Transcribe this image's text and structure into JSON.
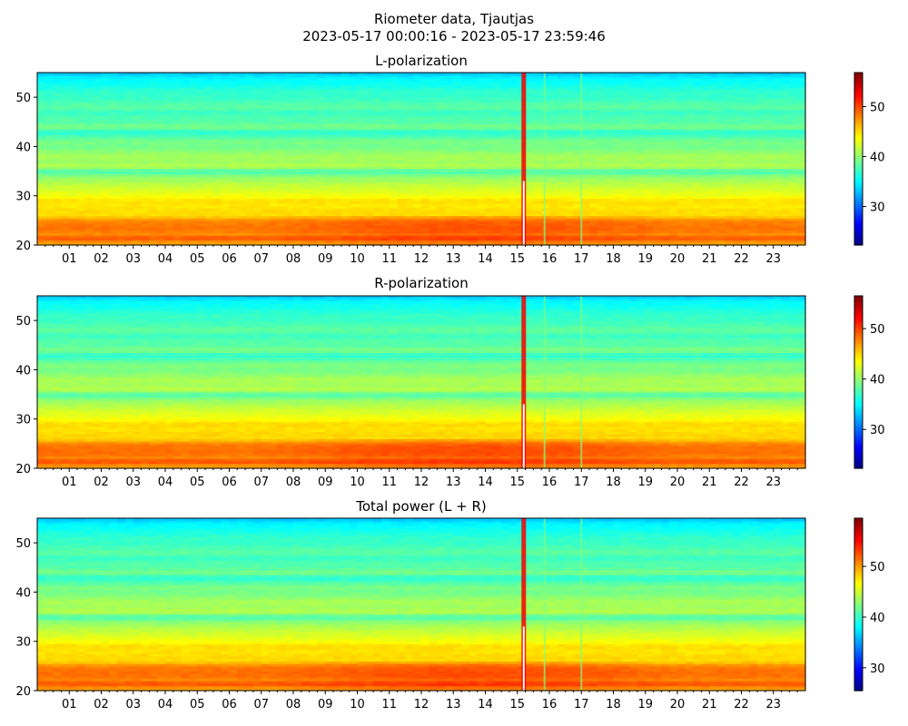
{
  "figure": {
    "title_line1": "Riometer data, Tjautjas",
    "title_line2": "2023-05-17 00:00:16 - 2023-05-17 23:59:46"
  },
  "chart_data": [
    {
      "type": "heatmap",
      "title": "L-polarization",
      "xlabel": "",
      "ylabel": "",
      "x_tick_labels": [
        "01",
        "02",
        "03",
        "04",
        "05",
        "06",
        "07",
        "08",
        "09",
        "10",
        "11",
        "12",
        "13",
        "14",
        "15",
        "16",
        "17",
        "18",
        "19",
        "20",
        "21",
        "22",
        "23"
      ],
      "x_range_hours": [
        0,
        24
      ],
      "y_ticks": [
        20,
        30,
        40,
        50
      ],
      "ylim": [
        20,
        55
      ],
      "colorbar": {
        "colormap": "jet",
        "range": [
          22.3,
          56.8
        ],
        "ticks": [
          30,
          40,
          50
        ]
      },
      "profile": {
        "y": [
          20,
          21,
          21.5,
          22,
          23,
          24,
          25,
          26,
          27,
          28,
          29,
          30,
          32,
          34,
          35,
          36,
          37,
          38,
          40,
          41,
          43,
          44,
          45,
          46,
          47,
          48,
          50,
          51,
          53,
          54,
          55
        ],
        "value": [
          46.5,
          48,
          50.5,
          47.5,
          48.5,
          48.5,
          48,
          45,
          45,
          44.5,
          45,
          43.5,
          42,
          40,
          37.5,
          41.5,
          40.5,
          41,
          39,
          39.5,
          36.5,
          39.5,
          38,
          38,
          37,
          38.5,
          37,
          37,
          35.5,
          35,
          33
        ]
      },
      "features": {
        "white_vertical_line_hour": 15.2,
        "warm_vertical_streak_hour": 15.2,
        "faint_vertical_lines_hours": [
          15.85,
          17.0
        ],
        "enhanced_band_hours": [
          7,
          20
        ]
      }
    },
    {
      "type": "heatmap",
      "title": "R-polarization",
      "xlabel": "",
      "ylabel": "",
      "x_tick_labels": [
        "01",
        "02",
        "03",
        "04",
        "05",
        "06",
        "07",
        "08",
        "09",
        "10",
        "11",
        "12",
        "13",
        "14",
        "15",
        "16",
        "17",
        "18",
        "19",
        "20",
        "21",
        "22",
        "23"
      ],
      "x_range_hours": [
        0,
        24
      ],
      "y_ticks": [
        20,
        30,
        40,
        50
      ],
      "ylim": [
        20,
        55
      ],
      "colorbar": {
        "colormap": "jet",
        "range": [
          22.3,
          56.5
        ],
        "ticks": [
          30,
          40,
          50
        ]
      },
      "profile": {
        "y": [
          20,
          21,
          21.5,
          22,
          23,
          24,
          25,
          26,
          27,
          28,
          29,
          30,
          32,
          34,
          35,
          36,
          37,
          38,
          40,
          41,
          43,
          44,
          45,
          46,
          47,
          48,
          50,
          51,
          53,
          54,
          55
        ],
        "value": [
          46.5,
          48,
          50.5,
          47.5,
          48.5,
          48.5,
          48,
          45,
          45,
          44.5,
          45,
          43.5,
          42,
          40,
          37.5,
          41.5,
          40.5,
          41,
          39,
          39.5,
          36.5,
          39.5,
          38,
          38,
          37,
          38.5,
          37,
          37,
          35.5,
          35,
          33
        ]
      },
      "features": {
        "white_vertical_line_hour": 15.2,
        "warm_vertical_streak_hour": 15.2,
        "faint_vertical_lines_hours": [
          15.85,
          17.0
        ],
        "enhanced_band_hours": [
          7,
          20
        ]
      }
    },
    {
      "type": "heatmap",
      "title": "Total power (L + R)",
      "xlabel": "",
      "ylabel": "",
      "x_tick_labels": [
        "01",
        "02",
        "03",
        "04",
        "05",
        "06",
        "07",
        "08",
        "09",
        "10",
        "11",
        "12",
        "13",
        "14",
        "15",
        "16",
        "17",
        "18",
        "19",
        "20",
        "21",
        "22",
        "23"
      ],
      "x_range_hours": [
        0,
        24
      ],
      "y_ticks": [
        20,
        30,
        40,
        50
      ],
      "ylim": [
        20,
        55
      ],
      "colorbar": {
        "colormap": "jet",
        "range": [
          25.5,
          59.5
        ],
        "ticks": [
          30,
          40,
          50
        ]
      },
      "profile": {
        "y": [
          20,
          21,
          21.5,
          22,
          23,
          24,
          25,
          26,
          27,
          28,
          29,
          30,
          32,
          34,
          35,
          36,
          37,
          38,
          40,
          41,
          43,
          44,
          45,
          46,
          47,
          48,
          50,
          51,
          53,
          54,
          55
        ],
        "value": [
          49.5,
          51,
          53.5,
          50.5,
          51.5,
          51.5,
          51,
          48,
          48,
          47.5,
          48,
          46.5,
          45,
          43,
          40.5,
          44.5,
          43.5,
          44,
          42,
          42.5,
          39.5,
          42.5,
          41,
          41,
          40,
          41.5,
          40,
          40,
          38.5,
          38,
          36
        ]
      },
      "features": {
        "white_vertical_line_hour": 15.2,
        "warm_vertical_streak_hour": 15.2,
        "faint_vertical_lines_hours": [
          15.85,
          17.0
        ],
        "enhanced_band_hours": [
          7,
          20
        ]
      }
    }
  ]
}
